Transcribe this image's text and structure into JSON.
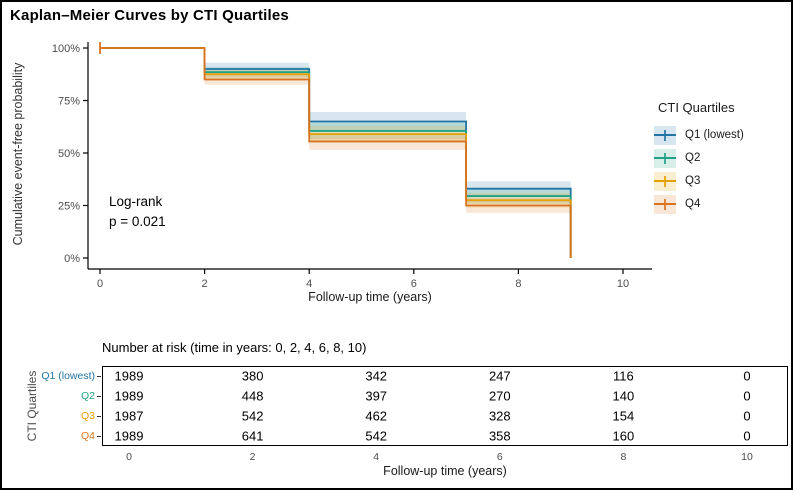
{
  "window": {
    "title": "Kaplan–Meier Curves by CTI Quartiles"
  },
  "chart_data": {
    "type": "line",
    "subtype": "kaplan-meier-step-curves-with-ci-ribbons",
    "title": "Kaplan–Meier Curves by CTI Quartiles",
    "xlabel": "Follow-up time (years)",
    "ylabel": "Cumulative event-free probability",
    "x_ticks": [
      0,
      2,
      4,
      6,
      8,
      10
    ],
    "y_ticks": [
      0,
      25,
      50,
      75,
      100
    ],
    "y_tick_labels": [
      "0%",
      "25%",
      "50%",
      "75%",
      "100%"
    ],
    "xlim": [
      0,
      10.5
    ],
    "ylim": [
      0,
      100
    ],
    "grid": false,
    "annotation": [
      "Log-rank",
      "p = 0.021"
    ],
    "legend": {
      "title": "CTI Quartiles",
      "position": "right"
    },
    "series": [
      {
        "name": "Q1 (lowest)",
        "color": "#2274a5",
        "times": [
          0,
          2,
          4,
          7,
          9
        ],
        "survival_pct": [
          100,
          90,
          65,
          33,
          0
        ],
        "ci_segments": [
          [
            2,
            4,
            93,
            87.5
          ],
          [
            4,
            7,
            69.5,
            61
          ],
          [
            7,
            9,
            36.5,
            29
          ]
        ]
      },
      {
        "name": "Q2",
        "color": "#1fa187",
        "times": [
          0,
          2,
          4,
          7,
          9
        ],
        "survival_pct": [
          100,
          88.5,
          60.5,
          29.5,
          0
        ],
        "ci_segments": [
          [
            2,
            4,
            91,
            86
          ],
          [
            4,
            7,
            64.5,
            56.5
          ],
          [
            7,
            9,
            33,
            26
          ]
        ]
      },
      {
        "name": "Q3",
        "color": "#e69f00",
        "times": [
          0,
          2,
          4,
          7,
          9
        ],
        "survival_pct": [
          100,
          87.5,
          59,
          27.5,
          0
        ],
        "ci_segments": [
          [
            2,
            4,
            90,
            85
          ],
          [
            4,
            7,
            63,
            55
          ],
          [
            7,
            9,
            31,
            24
          ]
        ]
      },
      {
        "name": "Q4",
        "color": "#d9731f",
        "times": [
          0,
          2,
          4,
          7,
          9
        ],
        "survival_pct": [
          100,
          85,
          55.5,
          25,
          0
        ],
        "ci_segments": [
          [
            2,
            4,
            87.5,
            82.5
          ],
          [
            4,
            7,
            59.5,
            51.5
          ],
          [
            7,
            9,
            28.5,
            21.5
          ]
        ]
      }
    ],
    "censor_tick": {
      "time": 0,
      "pct": 100
    }
  },
  "risk_table": {
    "title": "Number at risk (time in years: 0, 2, 4, 6, 8, 10)",
    "ylabel": "CTI Quartiles",
    "xlabel": "Follow-up time (years)",
    "times": [
      0,
      2,
      4,
      6,
      8,
      10
    ],
    "rows": [
      {
        "label": "Q1 (lowest)",
        "color": "#2274a5",
        "counts": [
          "1989",
          "380",
          "342",
          "247",
          "116",
          "0"
        ]
      },
      {
        "label": "Q2",
        "color": "#1fa187",
        "counts": [
          "1989",
          "448",
          "397",
          "270",
          "140",
          "0"
        ]
      },
      {
        "label": "Q3",
        "color": "#e69f00",
        "counts": [
          "1987",
          "542",
          "462",
          "328",
          "154",
          "0"
        ]
      },
      {
        "label": "Q4",
        "color": "#d9731f",
        "counts": [
          "1989",
          "641",
          "542",
          "358",
          "160",
          "0"
        ]
      }
    ]
  }
}
